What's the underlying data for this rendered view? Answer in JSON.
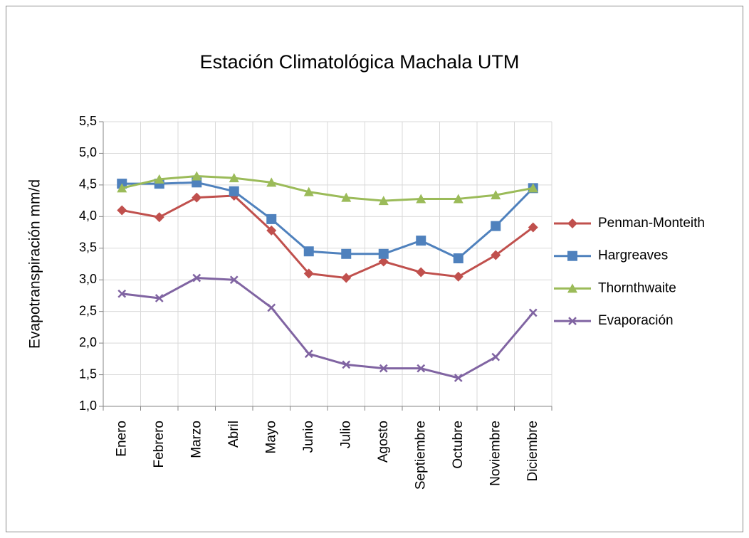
{
  "chart_data": {
    "type": "line",
    "title": "Estación Climatológica Machala UTM",
    "y_label": "Evapotranspiración  mm/d",
    "categories": [
      "Enero",
      "Febrero",
      "Marzo",
      "Abril",
      "Mayo",
      "Junio",
      "Julio",
      "Agosto",
      "Septiembre",
      "Octubre",
      "Noviembre",
      "Diciembre"
    ],
    "series": [
      {
        "name": "Penman-Monteith",
        "color": "#c0504d",
        "marker": "diamond",
        "values": [
          4.1,
          3.99,
          4.3,
          4.33,
          3.78,
          3.1,
          3.03,
          3.29,
          3.12,
          3.05,
          3.39,
          3.83
        ]
      },
      {
        "name": "Hargreaves",
        "color": "#4f81bd",
        "marker": "square",
        "values": [
          4.52,
          4.52,
          4.54,
          4.4,
          3.96,
          3.45,
          3.41,
          3.41,
          3.62,
          3.34,
          3.85,
          4.45
        ]
      },
      {
        "name": "Thornthwaite",
        "color": "#9bbb59",
        "marker": "triangle",
        "values": [
          4.45,
          4.59,
          4.64,
          4.61,
          4.54,
          4.39,
          4.3,
          4.25,
          4.28,
          4.28,
          4.34,
          4.45
        ]
      },
      {
        "name": "Evaporación",
        "color": "#8064a2",
        "marker": "x",
        "values": [
          2.78,
          2.71,
          3.03,
          3.0,
          2.56,
          1.83,
          1.66,
          1.6,
          1.6,
          1.45,
          1.78,
          2.48
        ]
      }
    ],
    "ylim": [
      1.0,
      5.5
    ],
    "yticks": [
      {
        "value": 1.0,
        "label": "1,0"
      },
      {
        "value": 1.5,
        "label": "1,5"
      },
      {
        "value": 2.0,
        "label": "2,0"
      },
      {
        "value": 2.5,
        "label": "2,5"
      },
      {
        "value": 3.0,
        "label": "3,0"
      },
      {
        "value": 3.5,
        "label": "3,5"
      },
      {
        "value": 4.0,
        "label": "4,0"
      },
      {
        "value": 4.5,
        "label": "4,5"
      },
      {
        "value": 5.0,
        "label": "5,0"
      },
      {
        "value": 5.5,
        "label": "5,5"
      }
    ],
    "grid": true,
    "legend": "right"
  }
}
